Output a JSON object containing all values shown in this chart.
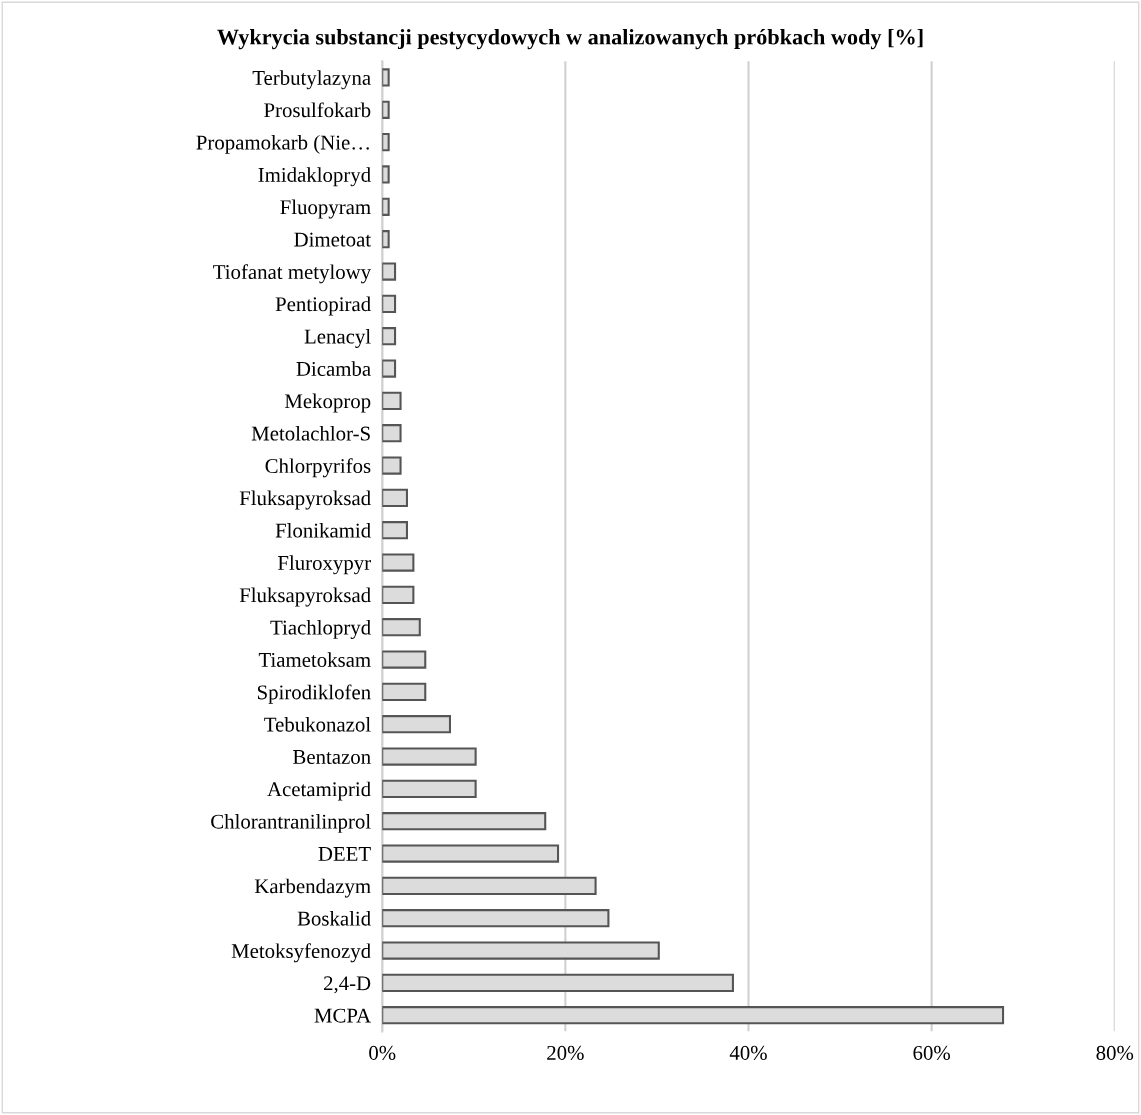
{
  "chart_data": {
    "type": "bar",
    "orientation": "horizontal",
    "title": "Wykrycia substancji pestycydowych w analizowanych próbkach wody [%]",
    "categories": [
      "Terbutylazyna",
      "Prosulfokarb",
      "Propamokarb (Nie…",
      "Imidaklopryd",
      "Fluopyram",
      "Dimetoat",
      "Tiofanat metylowy",
      "Pentiopirad",
      "Lenacyl",
      "Dicamba",
      "Mekoprop",
      "Metolachlor-S",
      "Chlorpyrifos",
      "Fluksapyroksad",
      "Flonikamid",
      "Fluroxypyr",
      "Fluksapyroksad",
      "Tiachlopryd",
      "Tiametoksam",
      "Spirodiklofen",
      "Tebukonazol",
      "Bentazon",
      "Acetamiprid",
      "Chlorantranilinprol",
      "DEET",
      "Karbendazym",
      "Boskalid",
      "Metoksyfenozyd",
      "2,4-D",
      "MCPA"
    ],
    "values": [
      0.7,
      0.7,
      0.7,
      0.7,
      0.7,
      0.7,
      1.4,
      1.4,
      1.4,
      1.4,
      2.0,
      2.0,
      2.0,
      2.7,
      2.7,
      3.4,
      3.4,
      4.1,
      4.7,
      4.7,
      7.4,
      10.2,
      10.2,
      17.8,
      19.2,
      23.3,
      24.7,
      30.2,
      38.3,
      67.8
    ],
    "color": "#dcdcdc",
    "xlim": [
      0,
      80
    ],
    "xticks": [
      {
        "value": 0,
        "label": "0%"
      },
      {
        "value": 20,
        "label": "20%"
      },
      {
        "value": 40,
        "label": "40%"
      },
      {
        "value": 60,
        "label": "60%"
      },
      {
        "value": 80,
        "label": "80%"
      }
    ],
    "grid": "x"
  }
}
